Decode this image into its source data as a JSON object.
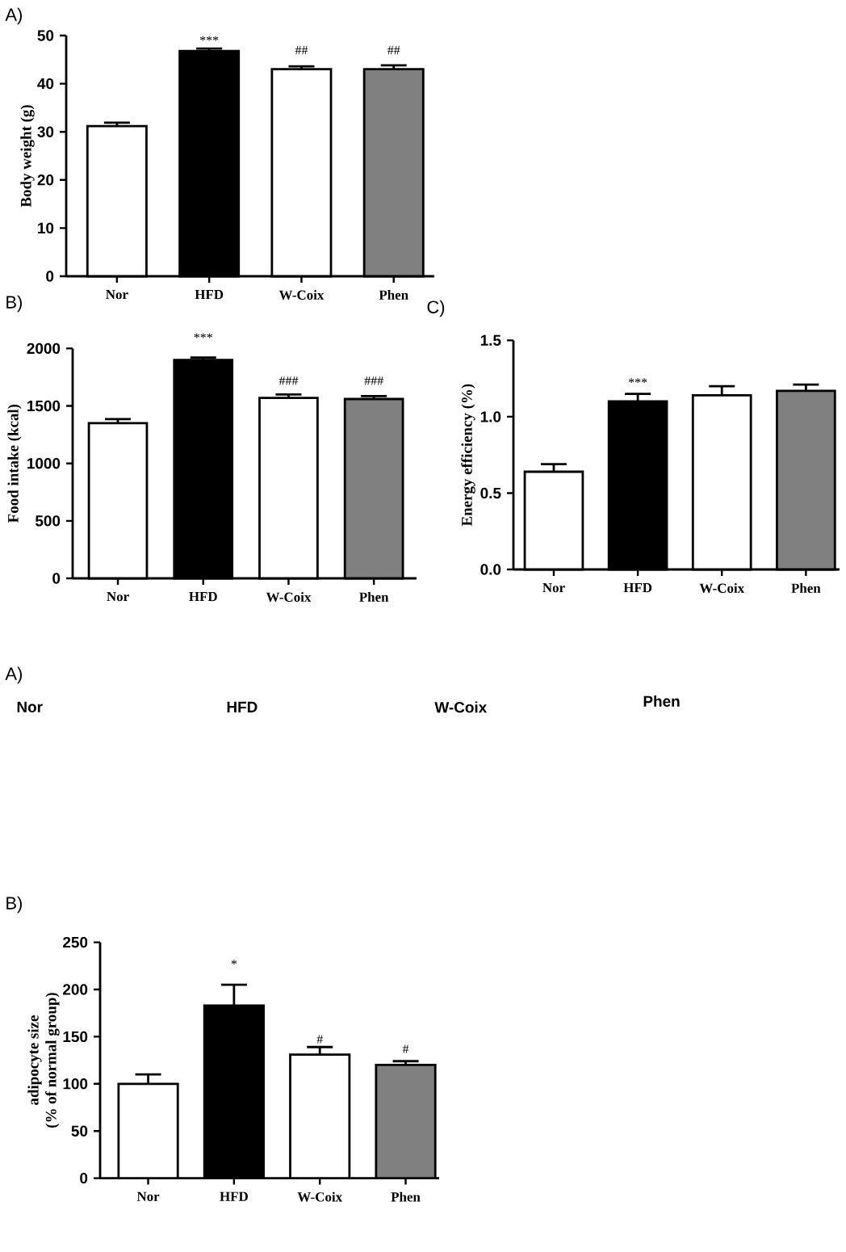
{
  "chart_data": [
    {
      "type": "bar",
      "title": "A)",
      "ylabel": "Body weight (g)",
      "categories": [
        "Nor",
        "HFD",
        "W-Coix",
        "Phen"
      ],
      "values": [
        31.2,
        46.8,
        43.0,
        43.0
      ],
      "errors": [
        [
          31.2,
          31.9
        ],
        [
          46.8,
          47.3
        ],
        [
          43.0,
          43.6
        ],
        [
          43.0,
          43.8
        ]
      ],
      "colors": [
        "#ffffff",
        "#000000",
        "#ffffff",
        "#808080"
      ],
      "ylim": [
        0,
        50
      ],
      "yticks": [
        0,
        10,
        20,
        30,
        40,
        50
      ],
      "annotations": [
        "***",
        "##",
        "##"
      ]
    },
    {
      "type": "bar",
      "title": "B)",
      "ylabel": "Food intake (kcal)",
      "categories": [
        "Nor",
        "HFD",
        "W-Coix",
        "Phen"
      ],
      "values": [
        1350,
        1900,
        1570,
        1560
      ],
      "errors": [
        [
          1350,
          1385
        ],
        [
          1900,
          1920
        ],
        [
          1570,
          1600
        ],
        [
          1560,
          1585
        ]
      ],
      "colors": [
        "#ffffff",
        "#000000",
        "#ffffff",
        "#808080"
      ],
      "ylim": [
        0,
        2000
      ],
      "yticks": [
        0,
        500,
        1000,
        1500,
        2000
      ],
      "annotations": [
        "***",
        "###",
        "###"
      ]
    },
    {
      "type": "bar",
      "title": "C)",
      "ylabel": "Energy efficiency (%)",
      "categories": [
        "Nor",
        "HFD",
        "W-Coix",
        "Phen"
      ],
      "values": [
        0.64,
        1.1,
        1.14,
        1.17
      ],
      "errors": [
        [
          0.64,
          0.69
        ],
        [
          1.1,
          1.15
        ],
        [
          1.14,
          1.2
        ],
        [
          1.17,
          1.21
        ]
      ],
      "colors": [
        "#ffffff",
        "#000000",
        "#ffffff",
        "#808080"
      ],
      "ylim": [
        0,
        1.5
      ],
      "yticks": [
        {
          "value": 0,
          "label": "0.0"
        },
        {
          "value": 0.5,
          "label": "0.5"
        },
        {
          "value": 1.0,
          "label": "1.0"
        },
        {
          "value": 1.5,
          "label": "1.5"
        }
      ],
      "annotations": [
        "***"
      ]
    },
    {
      "type": "other",
      "title": "A)",
      "categories": [
        "Nor",
        "HFD",
        "W-Coix",
        "Phen"
      ]
    },
    {
      "type": "bar",
      "title": "B)",
      "ylabel": "adipocyte size (% of normal group)",
      "categories": [
        "Nor",
        "HFD",
        "W-Coix",
        "Phen"
      ],
      "values": [
        100,
        183,
        131,
        120
      ],
      "errors": [
        [
          100,
          110
        ],
        [
          183,
          205
        ],
        [
          131,
          139
        ],
        [
          120,
          124
        ]
      ],
      "colors": [
        "#ffffff",
        "#000000",
        "#ffffff",
        "#808080"
      ],
      "ylim": [
        0,
        250
      ],
      "yticks": [
        0,
        50,
        100,
        150,
        200,
        250
      ],
      "annotations": [
        "*",
        "#",
        "#"
      ]
    }
  ]
}
